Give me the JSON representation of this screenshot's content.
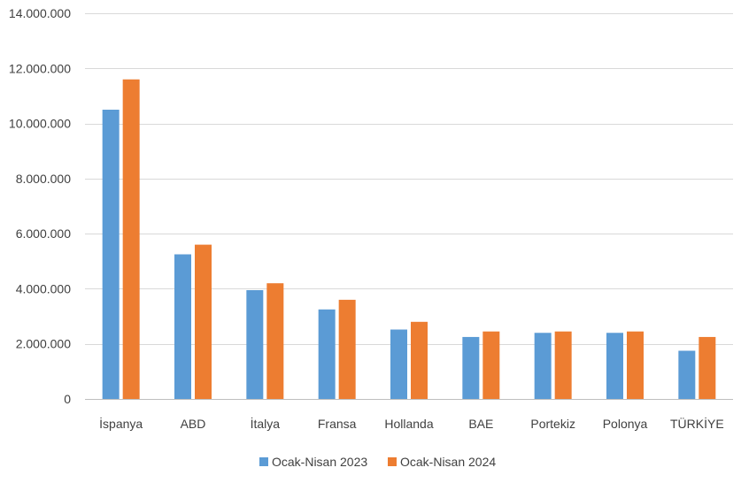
{
  "chart_data": {
    "type": "bar",
    "categories": [
      "İspanya",
      "ABD",
      "İtalya",
      "Fransa",
      "Hollanda",
      "BAE",
      "Portekiz",
      "Polonya",
      "TÜRKİYE"
    ],
    "series": [
      {
        "name": "Ocak-Nisan 2023",
        "color": "#5B9BD5",
        "values": [
          10500000,
          5250000,
          3950000,
          3250000,
          2520000,
          2250000,
          2400000,
          2400000,
          1750000
        ]
      },
      {
        "name": "Ocak-Nisan 2024",
        "color": "#ED7D31",
        "values": [
          11600000,
          5600000,
          4200000,
          3600000,
          2800000,
          2450000,
          2450000,
          2450000,
          2250000
        ]
      }
    ],
    "ylim": [
      0,
      14000000
    ],
    "yticks": [
      0,
      2000000,
      4000000,
      6000000,
      8000000,
      10000000,
      12000000,
      14000000
    ],
    "ytick_labels": [
      "0",
      "2.000.000",
      "4.000.000",
      "6.000.000",
      "8.000.000",
      "10.000.000",
      "12.000.000",
      "14.000.000"
    ],
    "title": "",
    "xlabel": "",
    "ylabel": "",
    "grid": true,
    "legend_position": "bottom"
  }
}
